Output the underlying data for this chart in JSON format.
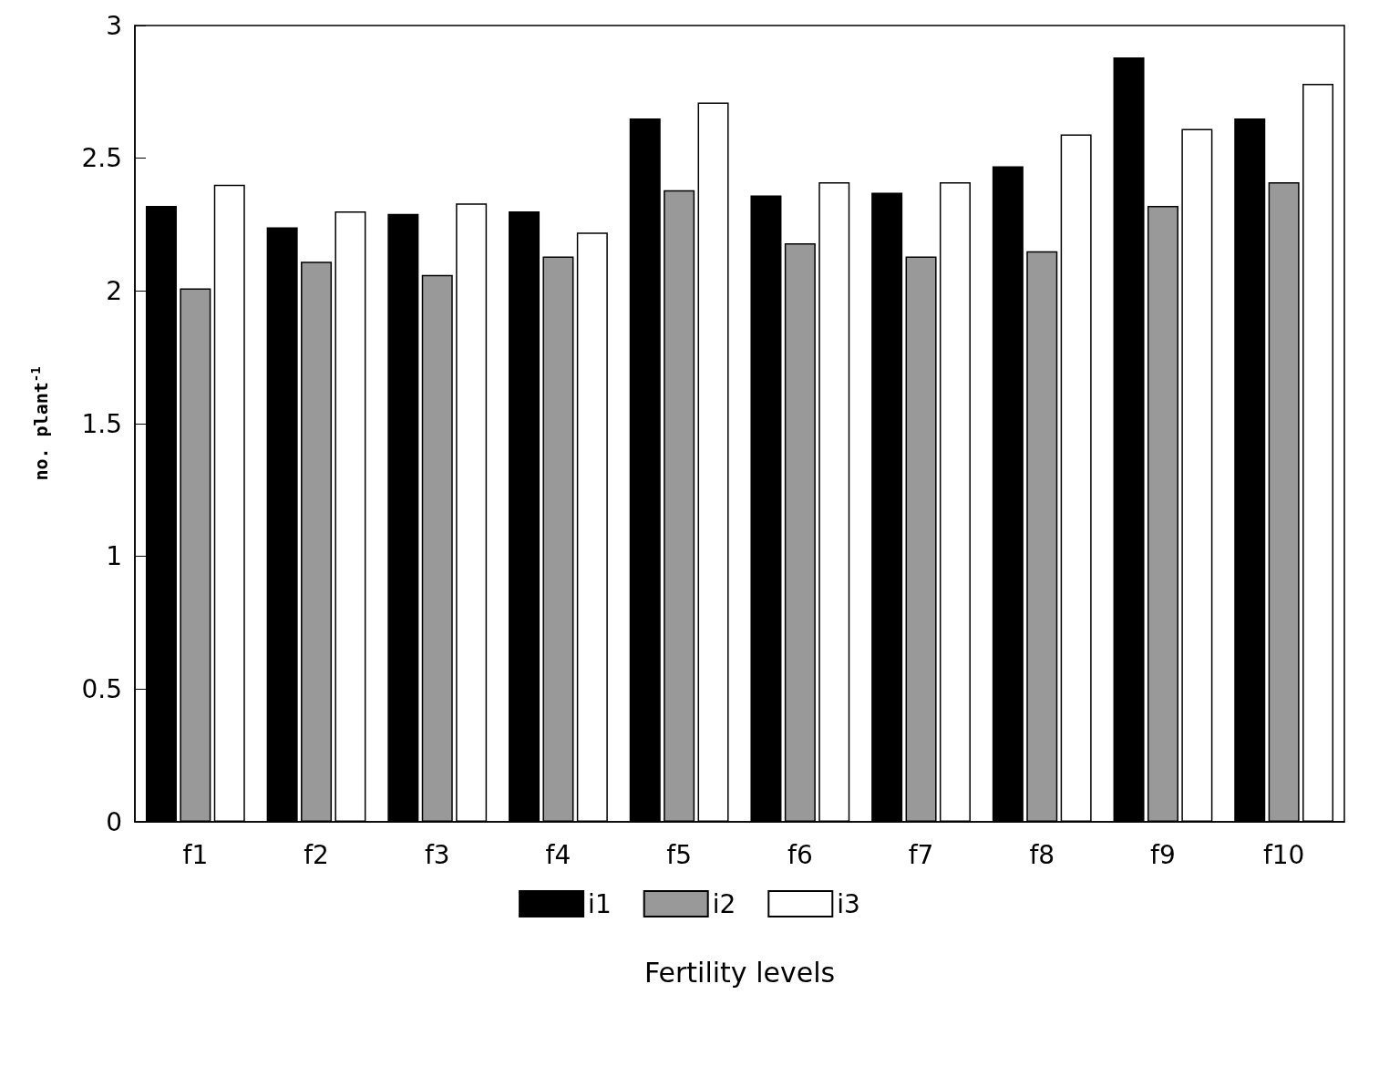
{
  "chart_data": {
    "type": "bar",
    "xlabel": "Fertility levels",
    "ylabel": "no. plant$^{-1}$",
    "categories": [
      "f1",
      "f2",
      "f3",
      "f4",
      "f5",
      "f6",
      "f7",
      "f8",
      "f9",
      "f10"
    ],
    "series": [
      {
        "name": "i1",
        "color": "#000000",
        "values": [
          2.32,
          2.24,
          2.29,
          2.3,
          2.65,
          2.36,
          2.37,
          2.47,
          2.88,
          2.65
        ]
      },
      {
        "name": "i2",
        "color": "#999999",
        "values": [
          2.01,
          2.11,
          2.06,
          2.13,
          2.38,
          2.18,
          2.13,
          2.15,
          2.32,
          2.41
        ]
      },
      {
        "name": "i3",
        "color": "#ffffff",
        "values": [
          2.4,
          2.3,
          2.33,
          2.22,
          2.71,
          2.41,
          2.41,
          2.59,
          2.61,
          2.78
        ]
      }
    ],
    "ylim": [
      0,
      3
    ],
    "yticks": [
      0,
      0.5,
      1,
      1.5,
      2,
      2.5,
      3
    ],
    "grid": false,
    "legend": "bottom"
  }
}
